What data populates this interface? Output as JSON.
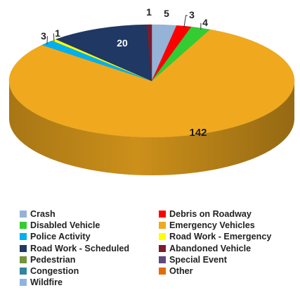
{
  "chart_data": {
    "type": "pie",
    "title": "",
    "style": "3d",
    "slices": [
      {
        "label": "Crash",
        "value": 5,
        "color": "#95b3d7"
      },
      {
        "label": "Debris on Roadway",
        "value": 3,
        "color": "#ff0000"
      },
      {
        "label": "Disabled Vehicle",
        "value": 4,
        "color": "#33cc33"
      },
      {
        "label": "Emergency Vehicles",
        "value": 142,
        "color": "#f0a91e"
      },
      {
        "label": "Police Activity",
        "value": 3,
        "color": "#00b0f0"
      },
      {
        "label": "Road Work - Emergency",
        "value": 1,
        "color": "#ffff00"
      },
      {
        "label": "Road Work - Scheduled",
        "value": 20,
        "color": "#1f3864"
      },
      {
        "label": "Abandoned Vehicle",
        "value": 1,
        "color": "#7b1c2c"
      },
      {
        "label": "Pedestrian",
        "value": 0,
        "color": "#76923c"
      },
      {
        "label": "Special Event",
        "value": 0,
        "color": "#5f497a"
      },
      {
        "label": "Congestion",
        "value": 0,
        "color": "#31859c"
      },
      {
        "label": "Other",
        "value": 0,
        "color": "#e36c09"
      },
      {
        "label": "Wildfire",
        "value": 0,
        "color": "#8eb4e3"
      }
    ],
    "legend_position": "bottom"
  }
}
